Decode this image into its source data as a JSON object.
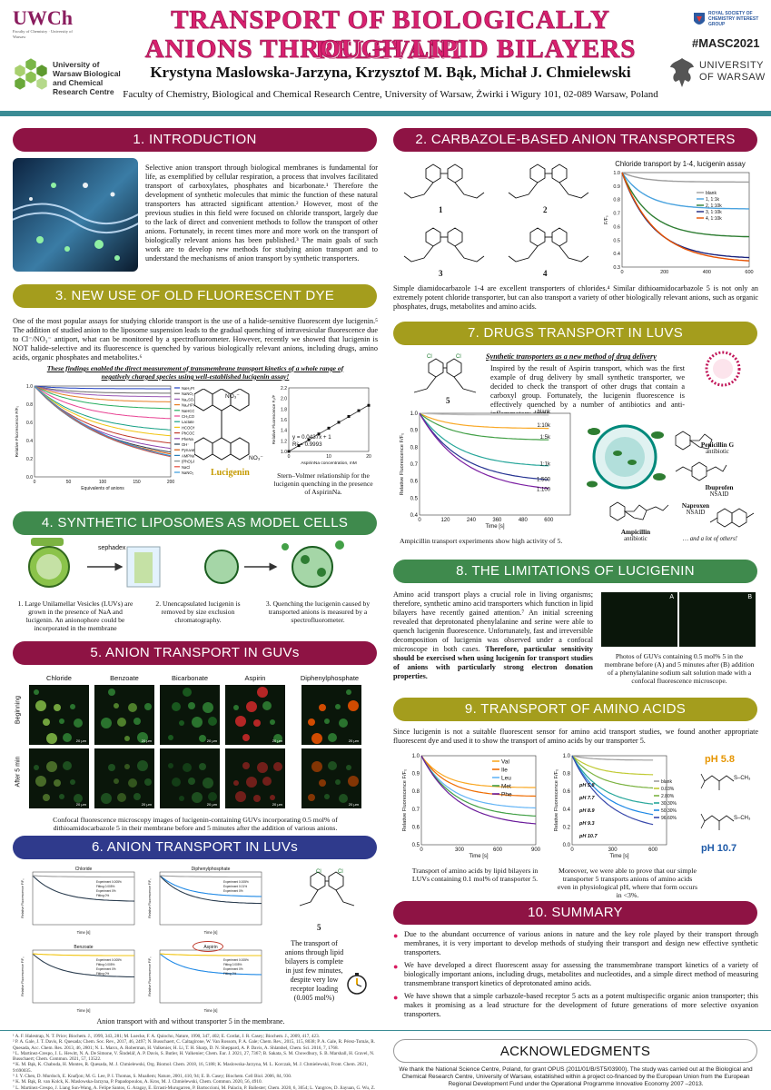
{
  "header": {
    "title_line1": "TRANSPORT OF BIOLOGICALLY RELEVANT",
    "title_line2": "ANIONS THROUGH LIPID BILAYERS",
    "authors": "Krystyna Maslowska-Jarzyna, Krzysztof M. Bąk, Michał J. Chmielewski",
    "affiliation": "Faculty of Chemistry, Biological and Chemical Research Centre, University of Warsaw, Żwirki i Wigury 101, 02-089 Warsaw, Poland",
    "logo_left_top": "UWCh",
    "logo_left_top_sub": "Faculty of Chemistry · University of Warsaw",
    "logo_left_bottom": "University of Warsaw Biological and Chemical Research Centre",
    "logo_right_top": "ROYAL SOCIETY OF CHEMISTRY INTEREST GROUP",
    "hashtag": "#MASC2021",
    "logo_right_bottom": "UNIVERSITY OF WARSAW"
  },
  "s1": {
    "title": "1. INTRODUCTION",
    "text": "Selective anion transport through biological membranes is fundamental for life, as exemplified by cellular respiration, a process that involves facilitated transport of carboxylates, phosphates and bicarbonate.¹ Therefore the development of synthetic molecules that mimic the function of these natural transporters has attracted significant attention.² However, most of the previous studies in this field were focused on chloride transport, largely due to the lack of direct and convenient methods to follow the transport of other anions. Fortunately, in recent times more and more work on the transport of biologically relevant anions has been published.³ The main goals of such work are to develop new methods for studying anion transport and to understand the mechanisms of anion transport by synthetic transporters."
  },
  "s3": {
    "title": "3. NEW USE OF OLD FLUORESCENT DYE",
    "text": "One of the most popular assays for studying chloride transport is the use of a halide-sensitive fluorescent dye lucigenin.⁵ The addition of studied anion to the liposome suspension leads to the gradual quenching of intravesicular fluorescence due to Cl⁻/NO₃⁻ antiport, what can be monitored by a spectrofluorometer. However, recently we showed that lucigenin is NOT halide-selective and its fluorescence is quenched by various biologically relevant anions, including drugs, amino acids, organic phosphates and metabolites.⁶",
    "highlight": "These findings enabled the direct measurement of transmembrane transport kinetics of a whole range of negatively charged species using well-established lucigenin assay!",
    "lucigenin_label": "Lucigenin",
    "sv_caption": "Stern–Volmer relationship for the lucigenin quenching in the presence of AspirinNa.",
    "sv_eq": "y = 0.0437x + 1",
    "sv_r2": "R² = 0.9993",
    "no3": "NO₃⁻"
  },
  "chart1": {
    "type": "line",
    "ylabel": "Relative Fluorescence F/F₀",
    "xlabel": "Equivalents of anions",
    "xlim": [
      0,
      200
    ],
    "ylim": [
      0.0,
      1.0
    ],
    "xticks": [
      "0",
      "50",
      "100",
      "150",
      "200"
    ],
    "yticks": [
      "0.0",
      "0.2",
      "0.4",
      "0.6",
      "0.8",
      "1.0"
    ],
    "series": [
      {
        "name": "NaH₂PO₄",
        "color": "#1f3fbf",
        "end": 0.97
      },
      {
        "name": "NaNO₃",
        "color": "#6b6b6b",
        "end": 0.92
      },
      {
        "name": "Na₂SO₄",
        "color": "#9b59b6",
        "end": 0.88
      },
      {
        "name": "Na₂HPO₄",
        "color": "#e67e22",
        "end": 0.82
      },
      {
        "name": "NaHCO₃",
        "color": "#27ae60",
        "end": 0.74
      },
      {
        "name": "CH₃COONa",
        "color": "#e84393",
        "end": 0.62
      },
      {
        "name": "LactateNa",
        "color": "#16a085",
        "end": 0.48
      },
      {
        "name": "HCOONa",
        "color": "#f1c40f",
        "end": 0.4
      },
      {
        "name": "PhCOONa",
        "color": "#c0392b",
        "end": 0.3
      },
      {
        "name": "PheNa",
        "color": "#8e44ad",
        "end": 0.22
      },
      {
        "name": "OH⁻",
        "color": "#2c3e50",
        "end": 0.16
      },
      {
        "name": "PyruvateNa",
        "color": "#d35400",
        "end": 0.12
      },
      {
        "name": "AMPNa",
        "color": "#2980b9",
        "end": 0.08
      },
      {
        "name": "(PhO)₂PO₂Na",
        "color": "#7f8c8d",
        "end": 0.05
      },
      {
        "name": "NaCl",
        "color": "#e74c3c",
        "end": 0.03
      },
      {
        "name": "NaNO₂",
        "color": "#3498db",
        "end": 0.02
      }
    ]
  },
  "chart_sv": {
    "type": "scatter",
    "ylabel": "Relative Fluorescence F₀/F",
    "xlabel": "AspirinNa concentration, mM",
    "xlim": [
      0,
      20
    ],
    "ylim": [
      1.0,
      2.2
    ],
    "xticks": [
      "0",
      "10",
      "20"
    ],
    "yticks": [
      "1.0",
      "1.2",
      "1.4",
      "1.6",
      "1.8",
      "2.0",
      "2.2"
    ],
    "points": [
      [
        0,
        1.0
      ],
      [
        2.5,
        1.11
      ],
      [
        5,
        1.22
      ],
      [
        7.5,
        1.33
      ],
      [
        10,
        1.44
      ],
      [
        12.5,
        1.55
      ],
      [
        15,
        1.66
      ],
      [
        17.5,
        1.77
      ],
      [
        20,
        1.87
      ]
    ]
  },
  "s4": {
    "title": "4. SYNTHETIC LIPOSOMES AS MODEL CELLS",
    "step1": "1. Large Unilamellar Vesicles (LUVs) are grown in the presence of NaA and lucigenin. An anionophore could be incorporated in the membrane",
    "step2": "2. Unencapsulated lucigenin is removed by size exclusion chromatography.",
    "step3": "3. Quenching the lucigenin caused by transported anions is measured by a spectrofluorometer.",
    "sephadex": "sephadex"
  },
  "s5": {
    "title": "5. ANION TRANSPORT IN GUVs",
    "cols": [
      "Chloride",
      "Benzoate",
      "Bicarbonate",
      "Aspirin",
      "Diphenylphosphate"
    ],
    "rows": [
      "Beginning",
      "After 5 min"
    ],
    "scale": "20 μm",
    "caption": "Confocal fluorescence microscopy images of lucigenin-containing GUVs incorporating 0.5 mol% of dithioamidocarbazole 5 in their membrane before and 5 minutes after the addition of various anions."
  },
  "s6": {
    "title": "6. ANION TRANSPORT IN LUVs",
    "panels": [
      {
        "title": "Chloride",
        "legend": [
          "Experiment 0.005%",
          "Fitting 0.005%",
          "Experiment 0%",
          "Fitting 0%"
        ]
      },
      {
        "title": "Diphenylphosphate",
        "legend": [
          "Experiment 0.005%",
          "Experiment 0.01%",
          "Experiment 0%"
        ]
      },
      {
        "title": "Benzoate",
        "legend": [
          "Experiment 0.005%",
          "Fitting 0.005%",
          "Experiment 0%",
          "Fitting 0%"
        ]
      },
      {
        "title": "Aspirin",
        "legend": [
          "Experiment 0.005%",
          "Fitting 0.005%",
          "Experiment 0%",
          "Fitting 0%"
        ]
      }
    ],
    "mini_ylabel": "Relative Fluorescence F/F₀",
    "mini_xlabel": "Time [s]",
    "compound": "5",
    "side_text": "The transport of anions through lipid bilayers is complete in just few minutes, despite very low receptor loading (0.005 mol%)",
    "caption": "Anion transport with and without transporter 5 in the membrane."
  },
  "s2": {
    "title": "2. CARBAZOLE-BASED ANION TRANSPORTERS",
    "compounds": [
      "1",
      "2",
      "3",
      "4"
    ],
    "chart_title": "Chloride transport by 1-4, lucigenin assay",
    "text": "Simple diamidocarbazole 1-4 are excellent transporters of chlorides.⁴ Similar dithioamidocarbazole 5 is not only an extremely potent chloride transporter, but can also transport a variety of other biologically relevant anions, such as organic phosphates, drugs, metabolites and amino acids."
  },
  "chart2": {
    "type": "line",
    "ylabel": "F/F₀",
    "xlabel": "",
    "xlim": [
      0,
      600
    ],
    "ylim": [
      0.3,
      1.0
    ],
    "xticks": [
      "0",
      "200",
      "400",
      "600"
    ],
    "yticks": [
      "0.3",
      "0.4",
      "0.5",
      "0.6",
      "0.7",
      "0.8",
      "0.9",
      "1.0"
    ],
    "series": [
      {
        "name": "blank",
        "color": "#9e9e9e",
        "end": 0.93
      },
      {
        "name": "1, 1:1k",
        "color": "#4aa3df",
        "end": 0.73
      },
      {
        "name": "2, 1:10k",
        "color": "#2e7d32",
        "end": 0.52
      },
      {
        "name": "3, 1:10k",
        "color": "#1a237e",
        "end": 0.36
      },
      {
        "name": "4, 1:10k",
        "color": "#e65100",
        "end": 0.33
      }
    ]
  },
  "s7": {
    "title": "7. DRUGS TRANSPORT IN LUVS",
    "subtitle": "Synthetic transporters as a new method of drug delivery",
    "text": "Inspired by the result of Aspirin transport, which was the first example of drug delivery by small synthetic transporter, we decided to check the transport of other drugs that contain a carboxyl group. Fortunately, the lucigenin fluorescence is effectively quenched by a number of antibiotics and anti-inflammatory drugs.",
    "compound": "5",
    "caption": "Ampicillin transport experiments show high activity of 5.",
    "drugs": [
      {
        "name": "Penicillin G",
        "cls": "antibiotic"
      },
      {
        "name": "Ibuprofen",
        "cls": "NSAID"
      },
      {
        "name": "Naproxen",
        "cls": "NSAID"
      },
      {
        "name": "Ampicillin",
        "cls": "antibiotic"
      }
    ],
    "more": "… and a lot of others!",
    "drug_label": "drug"
  },
  "chart7": {
    "type": "line",
    "ylabel": "Relative Fluorescence F/F₀",
    "xlabel": "Time [s]",
    "xlim": [
      0,
      700
    ],
    "ylim": [
      0.4,
      1.0
    ],
    "xticks": [
      "0",
      "120",
      "240",
      "360",
      "480",
      "600"
    ],
    "yticks": [
      "0.4",
      "0.5",
      "0.6",
      "0.7",
      "0.8",
      "0.9",
      "1.0"
    ],
    "series": [
      {
        "name": "blank",
        "color": "#bdbdbd",
        "end": 0.99
      },
      {
        "name": "1:10k",
        "color": "#f9a825",
        "end": 0.91
      },
      {
        "name": "1:5k",
        "color": "#43a047",
        "end": 0.84
      },
      {
        "name": "1:1k",
        "color": "#26a69a",
        "end": 0.68
      },
      {
        "name": "1:500",
        "color": "#283593",
        "end": 0.59
      },
      {
        "name": "1:100",
        "color": "#7b1fa2",
        "end": 0.53
      }
    ]
  },
  "s8": {
    "title": "8. THE LIMITATIONS OF LUCIGENIN",
    "text": "Amino acid transport plays a crucial role in living organisms; therefore, synthetic amino acid transporters which function in lipid bilayers have recently gained attention.⁷ An initial screening revealed that deprotonated phenylalanine and serine were able to quench lucigenin fluorescence. Unfortunately, fast and irreversible decomposition of lucigenin was observed under a confocal microscope in both cases.",
    "text_bold": "Therefore, particular sensitivity should be exercised when using lucigenin for transport studies of anions with particularly strong electron donation properties.",
    "panel_a": "A",
    "panel_b": "B",
    "caption": "Photos of GUVs containing 0.5 mol% 5 in the membrane before (A) and 5 minutes after (B) addition of a phenylalanine sodium salt solution made with a confocal fluorescence microscope."
  },
  "s9": {
    "title": "9. TRANSPORT OF AMINO ACIDS",
    "text": "Since lucigenin is not a suitable fluorescent sensor for amino acid transport studies, we found another appropriate fluorescent dye and used it to show the transport of amino acids by our transporter 5.",
    "cap_left": "Transport of amino acids by lipid bilayers in LUVs containing 0.1 mol% of transporter 5.",
    "cap_right": "Moreover, we were able to prove that our simple transporter 5 transports anions of amino acids even in physiological pH, where that form occurs in <3%.",
    "ph_top": "pH 5.8",
    "ph_bottom": "pH 10.7",
    "no3": "NO₃⁻",
    "cys": "S–CH₃"
  },
  "chart9a": {
    "type": "line",
    "ylabel": "Relative Fluorescence F/F₀",
    "xlabel": "Time [s]",
    "xlim": [
      0,
      900
    ],
    "ylim": [
      0.5,
      1.0
    ],
    "xticks": [
      "0",
      "300",
      "600",
      "900"
    ],
    "yticks": [
      "0.5",
      "0.6",
      "0.7",
      "0.8",
      "0.9",
      "1.0"
    ],
    "series": [
      {
        "name": "Val",
        "color": "#f9a825",
        "end": 0.82
      },
      {
        "name": "Ile",
        "color": "#ef6c00",
        "end": 0.77
      },
      {
        "name": "Leu",
        "color": "#64b5f6",
        "end": 0.7
      },
      {
        "name": "Met",
        "color": "#43a047",
        "end": 0.65
      },
      {
        "name": "Phe",
        "color": "#6a1b9a",
        "end": 0.6
      }
    ]
  },
  "chart9b": {
    "type": "line",
    "ylabel": "Relative Fluorescence F/F₀",
    "xlabel": "Time [s]",
    "xlim": [
      0,
      700
    ],
    "ylim": [
      0.0,
      1.0
    ],
    "xticks": [
      "0",
      "300",
      "600"
    ],
    "yticks": [
      "0.0",
      "0.2",
      "0.4",
      "0.6",
      "0.8",
      "1.0"
    ],
    "series": [
      {
        "name": "blank",
        "color": "#9e9e9e",
        "end": 0.95
      },
      {
        "name": "0.03%",
        "color": "#c0ca33",
        "end": 0.78
      },
      {
        "name": "2.80%",
        "color": "#7cb342",
        "end": 0.62
      },
      {
        "name": "30.30%",
        "color": "#26a69a",
        "end": 0.42
      },
      {
        "name": "50.30%",
        "color": "#1e88e5",
        "end": 0.28
      },
      {
        "name": "96.60%",
        "color": "#3949ab",
        "end": 0.14
      }
    ],
    "ph_labels": [
      "pH 5.8",
      "pH 7.7",
      "pH 8.9",
      "pH 9.3",
      "pH 10.7"
    ]
  },
  "s10": {
    "title": "10. SUMMARY",
    "points": [
      "Due to the abundant occurrence of various anions in nature and the key role played by their transport through membranes, it is very important to develop methods of studying their transport and design new effective synthetic transporters.",
      "We have developed a direct fluorescent assay for assessing the transmembrane transport kinetics of a variety of biologically important anions, including drugs, metabolites and nucleotides, and a simple direct method of measuring transmembrane transport kinetics of deprotonated amino acids.",
      "We have shown that a simple carbazole-based receptor 5 acts as a potent multispecific organic anion transporter; this makes it promising as a lead structure for the development of future generations of more selective oxyanion transporters."
    ]
  },
  "refs": [
    "¹ A. F. Halestrap, N. T. Price; Biochem. J., 1999, 343, 281; M. Luecke, F. A. Quiocho, Nature, 1990, 347, 402; E. Cordat, J. R. Casey; Biochem. J., 2009, 417, 423.",
    "² P. A. Gale, J. T. Davis, R. Quesada; Chem. Soc. Rev., 2017, 46, 2497; N. Busschaert, C. Caltagirone, W. Van Rossom, P. A. Gale; Chem. Rev., 2015, 115, 8038; P. A. Gale, R. Pérez-Tomás, R. Quesada, Acc. Chem. Res. 2013, 46, 2801; N. L. Marcs, A. Roberman, H. Valkenier, H. Li, T. H. Sharp, D. N. Sheppard, A. P. Davis, A. Shlatshel, Chem. Sci. 2016, 7, 1768.",
    "³ L. Martínez-Crespo, J. L. Hewitt, N. A. De Simone, V. Šindelář, A. P. Davis, S. Butler, H. Valkenier; Chem. Eur. J. 2021, 27, 7367; B. Sakata, S. M. Chowdhury, S. B. Marshall, H. Gravel, N. Busschaert; Chem. Commun. 2021, 57, 13522.",
    "⁴ K. M. Bąk, K. Chabuda, H. Montes, R. Quesada, M. J. Chmielewski, Org. Biomol. Chem. 2018, 16, 5188; K. Maslowska-Jarzyna, M. L. Korczak, M. J. Chmielewski, Front. Chem. 2021, 9:690035.",
    "⁵ J. Y. Chen, D. Murdoch, E. Knafjon; M. G. Lee, P. I. Thomas, S. Muallem; Nature, 2001, 410, 94; E. B. Casey; Biochem. Cell Biol. 2006, 84, 930.",
    "⁶ K. M. Bąk, B. van Kolck, K. Maslowska-Jarzyna, P. Papadopoulou, A. Kros, M. J. Chmielewski, Chem. Commun. 2020, 56, 4910.",
    "⁷ L. Martínez-Crespo, J. Liang Sun-Wang, A. Felipe Santos, G. Aragay, E. Errasti-Murugarren, P. Bartoccioni, M. Palacin, P. Ballester; Chem. 2020, 6, 3054; L. Yangrow, D. Jiayuan, G. Wu, Z. Xiaobo, L. Yuhan, C. Yong, L. Yan, J. Am. Chem. Soc. 2021, article ASAP."
  ],
  "ack": {
    "title": "ACKNOWLEDGMENTS",
    "text": "We thank the National Science Centre, Poland, for grant OPUS (2011/01/B/ST5/03900). The study was carried out at the Biological and Chemical Research Centre, University of Warsaw, established within a project co-financed by the European Union from the European Regional Development Fund under the Operational Programme Innovative Economy 2007 –2013."
  }
}
